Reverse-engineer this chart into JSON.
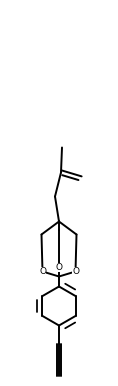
{
  "background": "#ffffff",
  "line_color": "#000000",
  "line_width": 1.4,
  "figsize": [
    1.18,
    3.86
  ],
  "dpi": 100,
  "xlim": [
    0,
    1.18
  ],
  "ylim": [
    0,
    3.86
  ]
}
